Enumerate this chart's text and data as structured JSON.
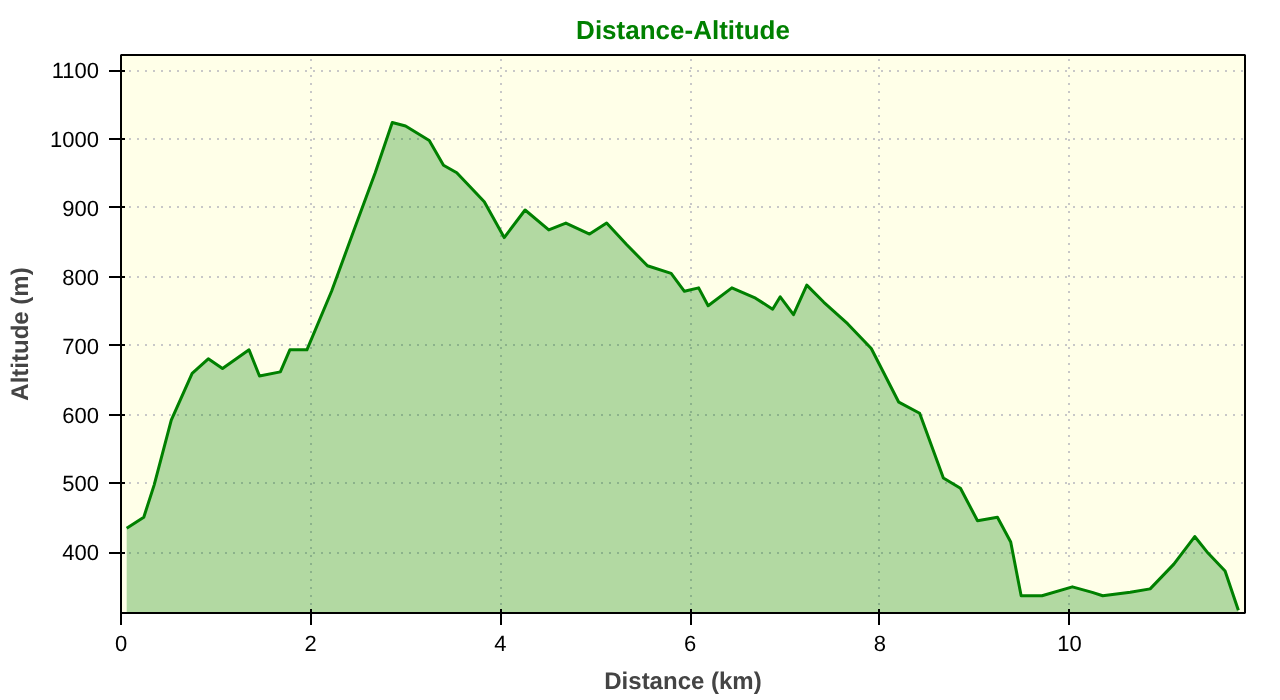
{
  "chart_data": {
    "type": "area",
    "title": "Distance-Altitude",
    "xlabel": "Distance (km)",
    "ylabel": "Altitude (m)",
    "xlim": [
      0,
      11.85
    ],
    "ylim": [
      312,
      1122
    ],
    "xticks": [
      0,
      2,
      4,
      6,
      8,
      10
    ],
    "yticks": [
      400,
      500,
      600,
      700,
      800,
      900,
      1000,
      1100
    ],
    "grid": true,
    "series": [
      {
        "color": "#008000",
        "x": [
          0.06,
          0.24,
          0.35,
          0.53,
          0.75,
          0.92,
          1.07,
          1.35,
          1.46,
          1.68,
          1.78,
          1.96,
          2.22,
          2.47,
          2.68,
          2.86,
          3.0,
          3.25,
          3.4,
          3.54,
          3.83,
          4.04,
          4.26,
          4.51,
          4.69,
          4.94,
          5.12,
          5.33,
          5.55,
          5.8,
          5.94,
          6.09,
          6.19,
          6.44,
          6.69,
          6.87,
          6.95,
          7.09,
          7.23,
          7.41,
          7.66,
          7.91,
          8.2,
          8.42,
          8.67,
          8.85,
          9.03,
          9.24,
          9.38,
          9.49,
          9.71,
          10.03,
          10.24,
          10.35,
          10.64,
          10.85,
          11.1,
          11.32,
          11.46,
          11.64,
          11.78
        ],
        "values": [
          435,
          451,
          498,
          592,
          660,
          681,
          667,
          694,
          656,
          662,
          694,
          694,
          779,
          873,
          951,
          1024,
          1019,
          998,
          962,
          951,
          909,
          857,
          897,
          868,
          878,
          862,
          878,
          847,
          816,
          805,
          779,
          784,
          758,
          784,
          769,
          753,
          771,
          745,
          788,
          763,
          732,
          696,
          618,
          602,
          508,
          493,
          446,
          451,
          415,
          337,
          337,
          350,
          342,
          337,
          342,
          347,
          383,
          423,
          399,
          373,
          316
        ]
      }
    ]
  }
}
